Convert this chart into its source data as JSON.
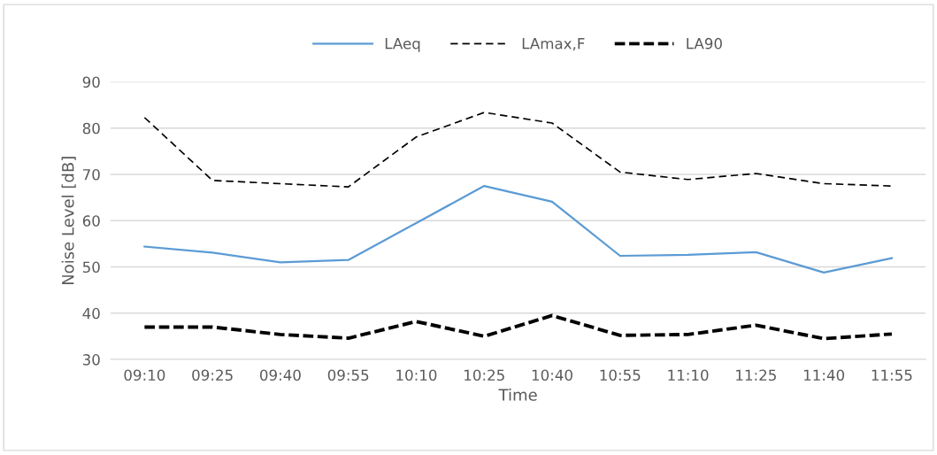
{
  "chart_data": {
    "type": "line",
    "xlabel": "Time",
    "ylabel": "Noise Level [dB]",
    "categories": [
      "09:10",
      "09:25",
      "09:40",
      "09:55",
      "10:10",
      "10:25",
      "10:40",
      "10:55",
      "11:10",
      "11:25",
      "11:40",
      "11:55"
    ],
    "series": [
      {
        "name": "LAeq",
        "color": "#5b9bd5",
        "line_style": "solid",
        "values": [
          54.4,
          53.1,
          51.0,
          51.5,
          59.5,
          67.5,
          64.1,
          52.4,
          52.6,
          53.2,
          48.8,
          51.9
        ]
      },
      {
        "name": "LAmax,F",
        "color": "#000000",
        "line_style": "dashed",
        "values": [
          82.3,
          68.7,
          68.0,
          67.3,
          78.1,
          83.4,
          81.1,
          70.5,
          68.9,
          70.2,
          68.0,
          67.5
        ]
      },
      {
        "name": "LA90",
        "color": "#000000",
        "line_style": "dashed",
        "values": [
          37.0,
          37.0,
          35.4,
          34.6,
          38.2,
          35.0,
          39.5,
          35.2,
          35.4,
          37.4,
          34.5,
          35.5
        ]
      }
    ],
    "ylim": [
      30,
      90
    ],
    "yticks": [
      30,
      40,
      50,
      60,
      70,
      80,
      90
    ],
    "grid": "y",
    "legend": "top",
    "marker": "none"
  }
}
